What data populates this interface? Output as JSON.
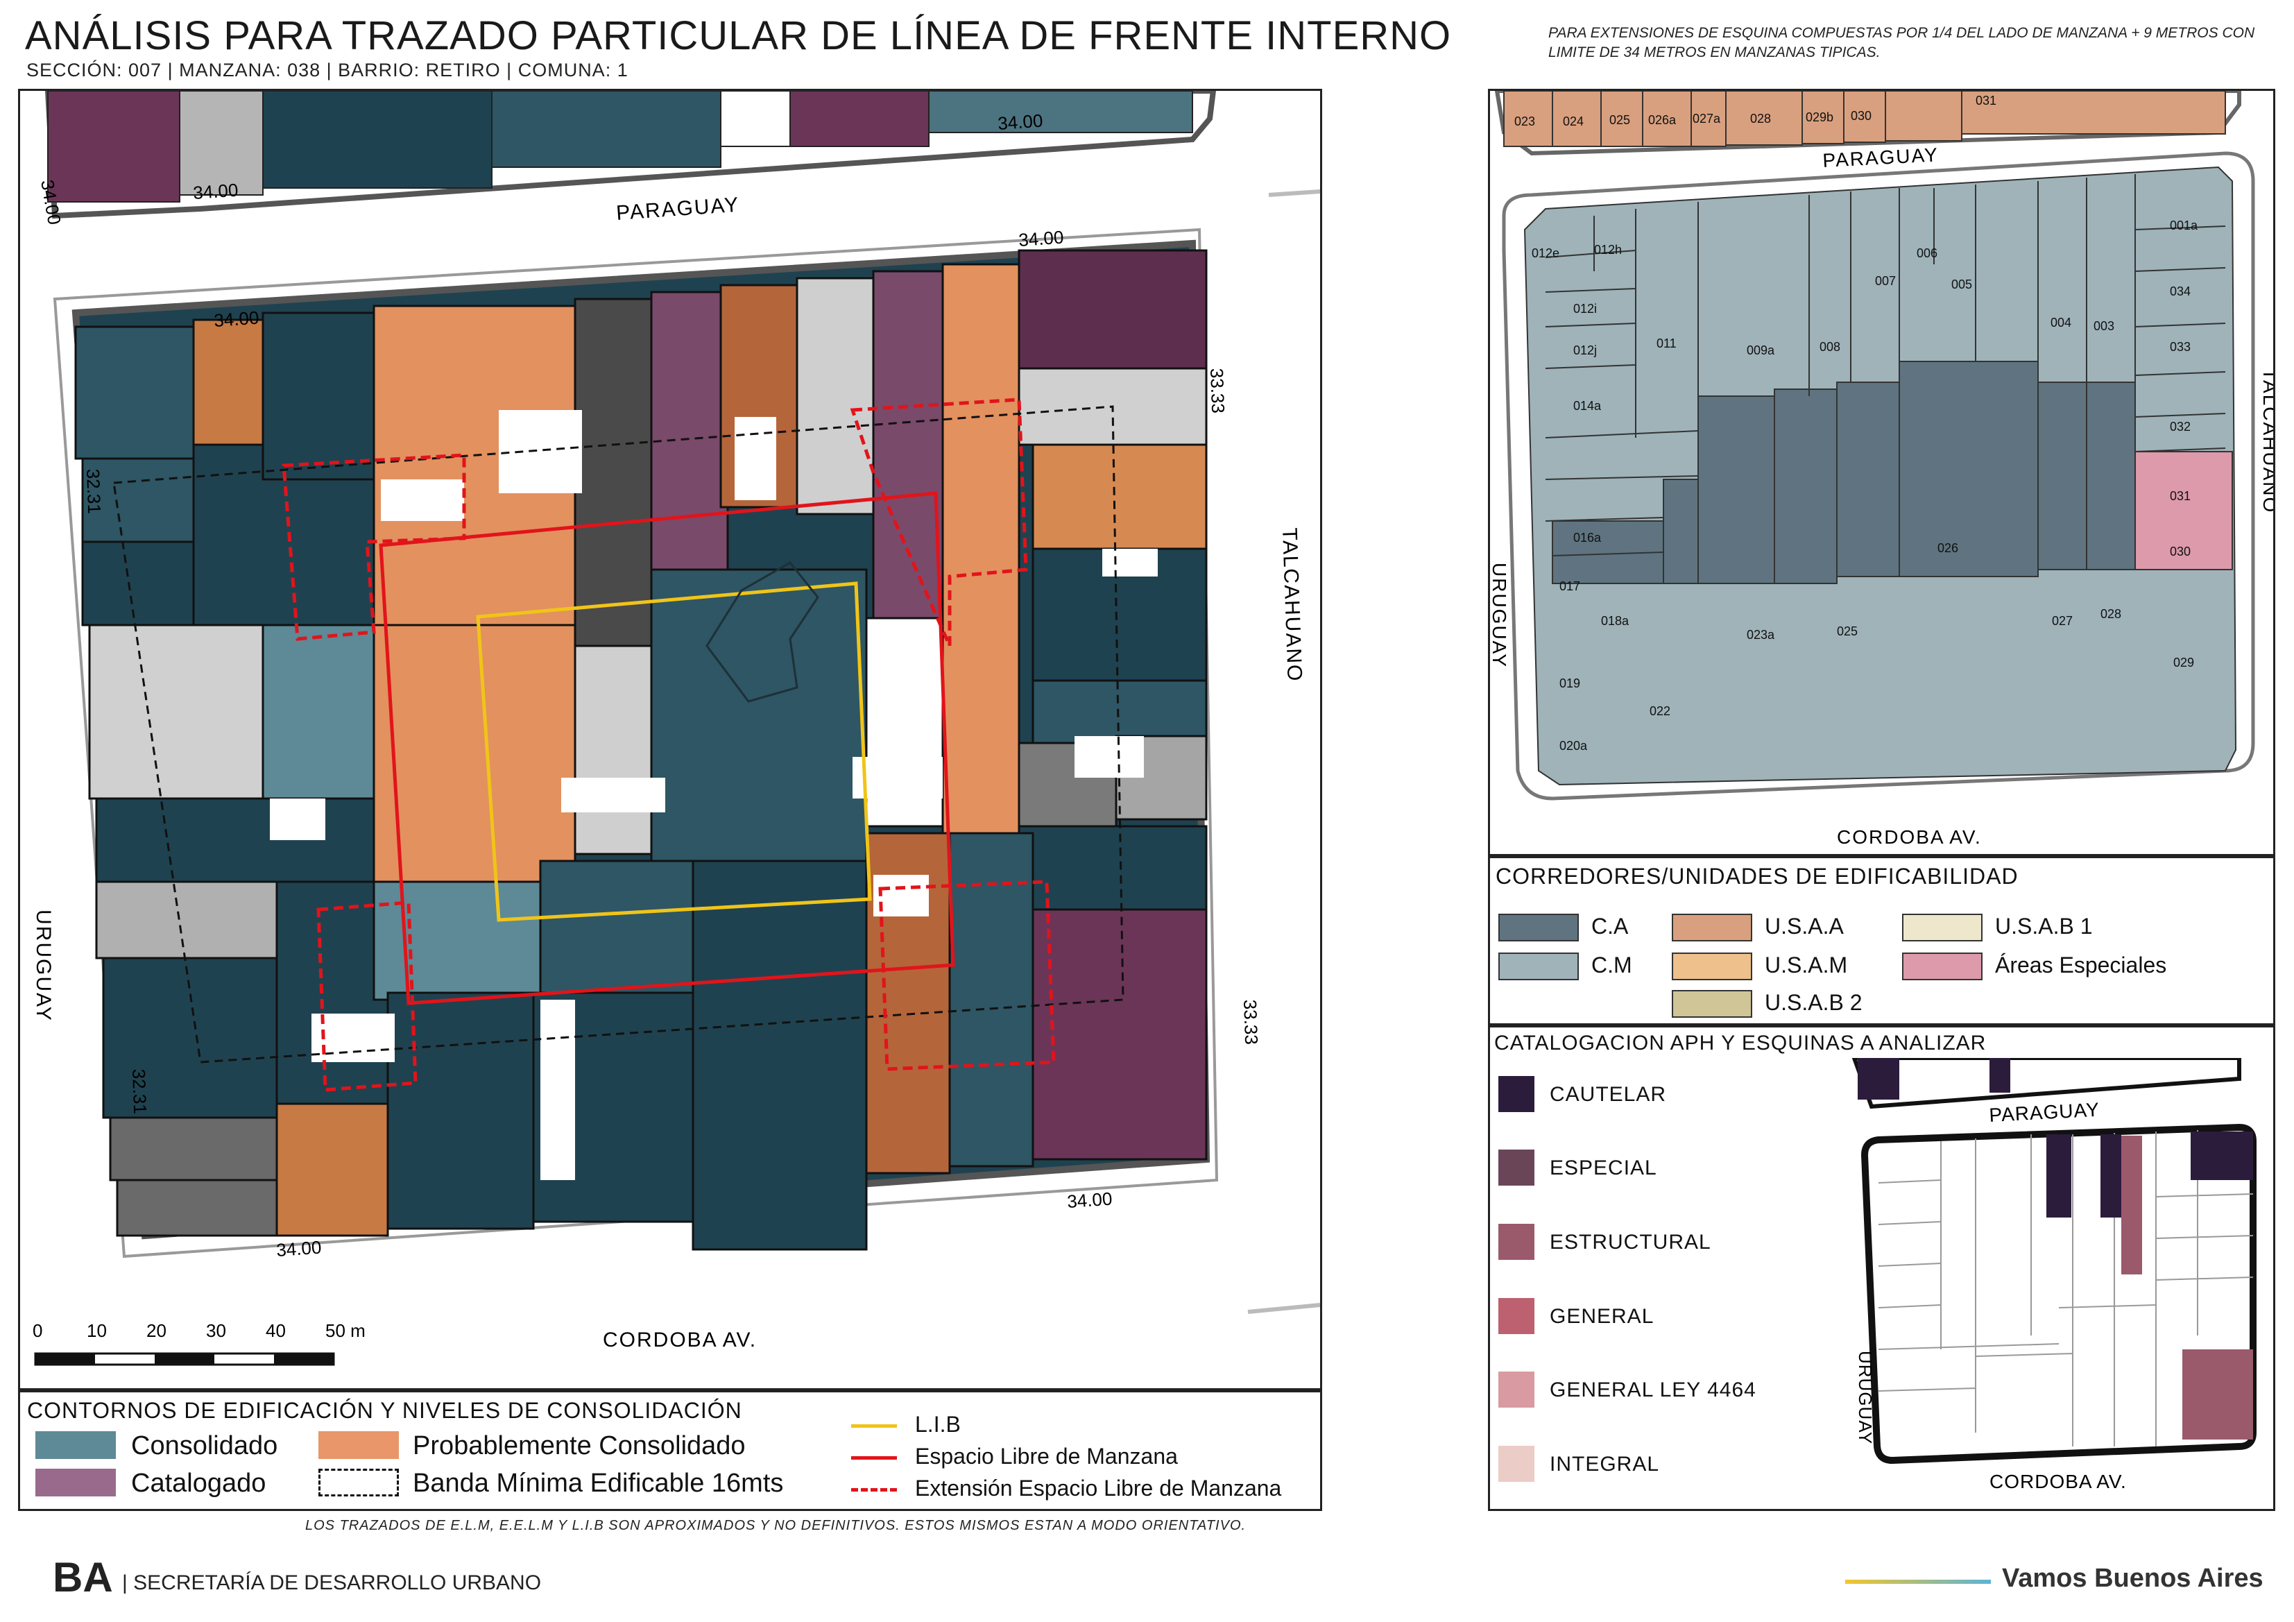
{
  "title": "ANÁLISIS PARA TRAZADO PARTICULAR DE LÍNEA DE FRENTE INTERNO",
  "subtitle": "SECCIÓN: 007 |  MANZANA: 038 | BARRIO: RETIRO | COMUNA: 1",
  "note_top": "PARA EXTENSIONES DE ESQUINA COMPUESTAS POR 1/4 DEL LADO DE MANZANA + 9 METROS CON LIMITE DE 34 METROS EN MANZANAS TIPICAS.",
  "colors": {
    "consolidado": "#5d8a96",
    "consolidado_dark": "#1f4250",
    "catalogado": "#9a6a8c",
    "probablemente": "#e8966a",
    "lib": "#f0c419",
    "elm": "#e1141b",
    "ca": "#5f7480",
    "cm": "#9fb3b9",
    "usaa": "#d9a07f",
    "usam": "#eec08c",
    "usab1": "#efe7cc",
    "usab2": "#cfc597",
    "areas_especiales": "#dc9aab"
  },
  "map_left": {
    "streets": [
      "PARAGUAY",
      "TALCAHUANO",
      "CORDOBA AV.",
      "URUGUAY"
    ],
    "dims": [
      "34.00",
      "34.00",
      "34.00",
      "34.00",
      "34.00",
      "34.00",
      "34.00",
      "33.33",
      "33.33",
      "32.31",
      "32.31"
    ],
    "scale_labels": [
      "0",
      "10",
      "20",
      "30",
      "40",
      "50 m"
    ]
  },
  "map_right": {
    "streets": [
      "PARAGUAY",
      "TALCAHUANO",
      "CORDOBA AV.",
      "URUGUAY"
    ],
    "top_parcels": [
      "023",
      "024",
      "025",
      "026a",
      "027a",
      "028",
      "029b",
      "030",
      "031"
    ],
    "parcels": [
      "012e",
      "012h",
      "012i",
      "012j",
      "014a",
      "011",
      "009a",
      "008",
      "007",
      "006",
      "005",
      "004",
      "003",
      "001a",
      "034",
      "033",
      "032",
      "031",
      "030",
      "029",
      "016a",
      "017",
      "018a",
      "019",
      "020a",
      "022",
      "023a",
      "025",
      "026",
      "027",
      "028"
    ]
  },
  "legend_corredores": {
    "title": "CORREDORES/UNIDADES DE EDIFICABILIDAD",
    "items": [
      {
        "label": "C.A",
        "color": "#5f7480"
      },
      {
        "label": "C.M",
        "color": "#9fb3b9"
      },
      {
        "label": "U.S.A.A",
        "color": "#d9a07f"
      },
      {
        "label": "U.S.A.M",
        "color": "#eec08c"
      },
      {
        "label": "U.S.A.B 2",
        "color": "#cfc597"
      },
      {
        "label": "U.S.A.B 1",
        "color": "#efe7cc"
      },
      {
        "label": "Áreas Especiales",
        "color": "#dc9aab"
      }
    ]
  },
  "legend_catalogacion": {
    "title": "CATALOGACION APH Y ESQUINAS A ANALIZAR",
    "items": [
      {
        "label": "CAUTELAR",
        "color": "#2c1c3c"
      },
      {
        "label": "ESPECIAL",
        "color": "#6a4558"
      },
      {
        "label": "ESTRUCTURAL",
        "color": "#9a5a6c"
      },
      {
        "label": "GENERAL",
        "color": "#bd6070"
      },
      {
        "label": "GENERAL LEY 4464",
        "color": "#d99aa2"
      },
      {
        "label": "INTEGRAL",
        "color": "#ecccc6"
      }
    ],
    "mini_streets": [
      "PARAGUAY",
      "URUGUAY",
      "CORDOBA AV."
    ]
  },
  "legend_consolidacion": {
    "title": "CONTORNOS DE EDIFICACIÓN Y NIVELES DE CONSOLIDACIÓN",
    "consolidado": "Consolidado",
    "catalogado": "Catalogado",
    "probablemente": "Probablemente Consolidado",
    "banda": "Banda Mínima Edificable 16mts",
    "lib": "L.I.B",
    "elm": "Espacio Libre de Manzana",
    "eelm": "Extensión Espacio Libre de Manzana"
  },
  "footnote": "LOS TRAZADOS DE E.L.M, E.E.L.M Y L.I.B SON APROXIMADOS Y NO DEFINITIVOS. ESTOS MISMOS ESTAN A MODO ORIENTATIVO.",
  "footer": {
    "logo": "BA",
    "org": "| SECRETARÍA DE DESARROLLO URBANO",
    "slogan": "Vamos Buenos Aires"
  }
}
